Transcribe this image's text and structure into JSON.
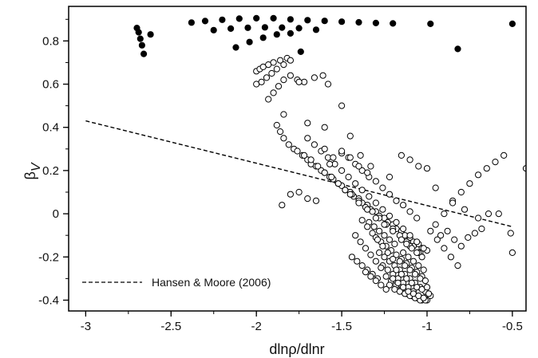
{
  "chart_data": {
    "type": "scatter",
    "xlabel": "dlnρ/dlnr",
    "ylabel": "β",
    "ylabel_subscript": "V",
    "xlim": [
      -3.1,
      -0.42
    ],
    "ylim": [
      -0.45,
      0.96
    ],
    "x_ticks": [
      -3,
      -2.5,
      -2,
      -1.5,
      -1,
      -0.5
    ],
    "x_tick_labels": [
      "-3",
      "-2.5",
      "-2",
      "-1.5",
      "-1",
      "-0.5"
    ],
    "y_ticks": [
      -0.4,
      -0.2,
      0,
      0.2,
      0.4,
      0.6,
      0.8
    ],
    "y_tick_labels": [
      "-0.4",
      "-0.2",
      "0",
      "0.2",
      "0.4",
      "0.6",
      "0.8"
    ],
    "grid": false,
    "legend": {
      "position": "bottom-left",
      "entries": [
        {
          "label": "Hansen & Moore (2006)",
          "style": "dashed-line"
        }
      ]
    },
    "series": [
      {
        "name": "Hansen & Moore (2006)",
        "type": "line",
        "style": "dashed",
        "color": "#000000",
        "x": [
          -3.0,
          -0.5
        ],
        "y": [
          0.43,
          -0.06
        ]
      },
      {
        "type": "scatter",
        "marker": "filled-circle",
        "color": "#000000",
        "x": [
          -2.7,
          -2.69,
          -2.68,
          -2.67,
          -2.66,
          -2.62,
          -2.38,
          -2.3,
          -2.2,
          -2.1,
          -2.0,
          -1.9,
          -1.8,
          -1.7,
          -1.6,
          -1.5,
          -1.4,
          -1.3,
          -1.2,
          -0.98,
          -0.82,
          -0.5,
          -2.25,
          -2.15,
          -2.05,
          -1.95,
          -1.85,
          -1.75,
          -1.65,
          -2.12,
          -2.04,
          -1.96,
          -1.88,
          -1.8,
          -1.74
        ],
        "y": [
          0.86,
          0.84,
          0.81,
          0.78,
          0.74,
          0.83,
          0.885,
          0.892,
          0.898,
          0.903,
          0.905,
          0.905,
          0.9,
          0.896,
          0.893,
          0.889,
          0.886,
          0.883,
          0.881,
          0.879,
          0.763,
          0.879,
          0.85,
          0.857,
          0.861,
          0.863,
          0.862,
          0.859,
          0.852,
          0.77,
          0.795,
          0.815,
          0.83,
          0.835,
          0.75
        ]
      },
      {
        "type": "scatter",
        "marker": "open-circle",
        "color": "#000000",
        "x": [
          -2.0,
          -1.98,
          -1.96,
          -1.93,
          -1.9,
          -1.86,
          -1.82,
          -2.0,
          -1.97,
          -1.94,
          -1.91,
          -1.88,
          -1.84,
          -1.8,
          -1.93,
          -1.9,
          -1.87,
          -1.84,
          -1.8,
          -1.76,
          -1.72,
          -1.66,
          -1.61,
          -1.58,
          -1.75,
          -1.88,
          -1.86,
          -1.84,
          -1.81,
          -1.78,
          -1.76,
          -1.73,
          -1.7,
          -1.68,
          -1.65,
          -1.62,
          -1.6,
          -1.57,
          -1.55,
          -1.52,
          -1.5,
          -1.48,
          -1.45,
          -1.43,
          -1.4,
          -1.38,
          -1.35,
          -1.33,
          -1.3,
          -1.28,
          -1.25,
          -1.23,
          -1.2,
          -1.18,
          -1.15,
          -1.13,
          -1.1,
          -1.08,
          -1.05,
          -1.03,
          -1.0,
          -1.72,
          -1.68,
          -1.64,
          -1.6,
          -1.56,
          -1.52,
          -1.48,
          -1.44,
          -1.4,
          -1.36,
          -1.32,
          -1.28,
          -1.24,
          -1.2,
          -1.16,
          -1.12,
          -1.08,
          -1.04,
          -1.5,
          -1.46,
          -1.42,
          -1.38,
          -1.34,
          -1.3,
          -1.26,
          -1.22,
          -1.18,
          -1.14,
          -1.1,
          -1.06,
          -1.7,
          -1.66,
          -1.62,
          -1.58,
          -1.54,
          -1.5,
          -1.46,
          -1.42,
          -1.38,
          -1.34,
          -1.3,
          -1.26,
          -1.22,
          -1.18,
          -1.14,
          -1.1,
          -1.06,
          -1.02,
          -1.45,
          -1.4,
          -1.35,
          -1.3,
          -1.25,
          -1.2,
          -1.15,
          -1.1,
          -1.05,
          -1.3,
          -1.27,
          -1.24,
          -1.21,
          -1.18,
          -1.15,
          -1.12,
          -1.09,
          -1.06,
          -1.03,
          -1.28,
          -1.25,
          -1.22,
          -1.19,
          -1.16,
          -1.13,
          -1.1,
          -1.07,
          -1.04,
          -1.01,
          -1.26,
          -1.23,
          -1.2,
          -1.17,
          -1.14,
          -1.11,
          -1.08,
          -1.05,
          -1.02,
          -1.24,
          -1.21,
          -1.18,
          -1.15,
          -1.12,
          -1.09,
          -1.06,
          -1.03,
          -1.0,
          -1.22,
          -1.19,
          -1.16,
          -1.13,
          -1.1,
          -1.07,
          -1.04,
          -1.01,
          -0.98,
          -1.2,
          -1.17,
          -1.14,
          -1.11,
          -1.08,
          -1.05,
          -1.02,
          -0.99,
          -1.18,
          -1.15,
          -1.12,
          -1.09,
          -1.06,
          -1.03,
          -1.0,
          -1.16,
          -1.13,
          -1.1,
          -1.07,
          -1.04,
          -1.01,
          -1.14,
          -1.11,
          -1.08,
          -1.05,
          -1.02,
          -1.12,
          -1.09,
          -1.06,
          -1.03,
          -1.34,
          -1.31,
          -1.28,
          -1.25,
          -1.22,
          -1.19,
          -1.38,
          -1.35,
          -1.32,
          -1.29,
          -1.26,
          -1.23,
          -1.2,
          -1.42,
          -1.39,
          -1.36,
          -1.33,
          -1.3,
          -1.27,
          -1.44,
          -1.41,
          -1.38,
          -1.35,
          -1.32,
          -1.29,
          -1.36,
          -1.33,
          -1.3,
          -1.27,
          -1.24,
          -0.95,
          -0.9,
          -0.85,
          -0.8,
          -0.75,
          -0.7,
          -0.65,
          -0.6,
          -0.55,
          -0.5,
          -0.92,
          -0.88,
          -0.84,
          -0.8,
          -0.76,
          -0.72,
          -0.68,
          -0.98,
          -0.94,
          -0.9,
          -0.86,
          -0.82,
          -1.6,
          -1.55,
          -1.5,
          -1.45,
          -1.4,
          -1.35,
          -1.57,
          -1.5,
          -1.45,
          -1.39,
          -1.33,
          -1.22,
          -1.15,
          -1.1,
          -1.05,
          -1.0,
          -0.95,
          -0.85,
          -0.78,
          -0.7,
          -0.64,
          -0.58,
          -0.42,
          -0.51,
          -1.8,
          -1.75,
          -1.7,
          -1.65,
          -1.85,
          -1.84,
          -1.7,
          -1.6
        ],
        "y": [
          0.66,
          0.67,
          0.68,
          0.69,
          0.7,
          0.71,
          0.72,
          0.6,
          0.61,
          0.63,
          0.65,
          0.67,
          0.69,
          0.71,
          0.53,
          0.56,
          0.59,
          0.62,
          0.64,
          0.62,
          0.61,
          0.63,
          0.64,
          0.6,
          0.61,
          0.41,
          0.38,
          0.35,
          0.32,
          0.3,
          0.29,
          0.27,
          0.25,
          0.23,
          0.22,
          0.2,
          0.19,
          0.17,
          0.16,
          0.14,
          0.13,
          0.11,
          0.1,
          0.08,
          0.07,
          0.05,
          0.04,
          0.02,
          0.01,
          -0.01,
          -0.02,
          -0.04,
          -0.05,
          -0.07,
          -0.08,
          -0.1,
          -0.11,
          -0.13,
          -0.14,
          -0.16,
          -0.17,
          0.27,
          0.25,
          0.22,
          0.19,
          0.17,
          0.14,
          0.11,
          0.09,
          0.06,
          0.03,
          0.01,
          -0.02,
          -0.05,
          -0.07,
          -0.1,
          -0.13,
          -0.15,
          -0.18,
          0.28,
          0.26,
          0.23,
          0.2,
          0.17,
          0.15,
          0.12,
          0.09,
          0.06,
          0.04,
          0.01,
          -0.02,
          0.35,
          0.32,
          0.29,
          0.26,
          0.23,
          0.2,
          0.17,
          0.14,
          0.11,
          0.08,
          0.05,
          0.02,
          -0.01,
          -0.04,
          -0.07,
          -0.1,
          -0.13,
          -0.16,
          0.09,
          0.05,
          0.02,
          -0.02,
          -0.05,
          -0.08,
          -0.12,
          -0.15,
          -0.18,
          -0.11,
          -0.13,
          -0.15,
          -0.17,
          -0.19,
          -0.21,
          -0.23,
          -0.25,
          -0.27,
          -0.29,
          -0.18,
          -0.2,
          -0.22,
          -0.24,
          -0.26,
          -0.28,
          -0.3,
          -0.32,
          -0.34,
          -0.36,
          -0.24,
          -0.26,
          -0.28,
          -0.3,
          -0.32,
          -0.34,
          -0.36,
          -0.38,
          -0.39,
          -0.29,
          -0.31,
          -0.33,
          -0.35,
          -0.37,
          -0.38,
          -0.39,
          -0.4,
          -0.4,
          -0.33,
          -0.35,
          -0.36,
          -0.37,
          -0.38,
          -0.39,
          -0.4,
          -0.4,
          -0.38,
          -0.3,
          -0.32,
          -0.34,
          -0.36,
          -0.37,
          -0.38,
          -0.39,
          -0.37,
          -0.26,
          -0.28,
          -0.3,
          -0.32,
          -0.34,
          -0.35,
          -0.34,
          -0.22,
          -0.24,
          -0.26,
          -0.28,
          -0.3,
          -0.31,
          -0.18,
          -0.2,
          -0.22,
          -0.24,
          -0.26,
          -0.14,
          -0.16,
          -0.18,
          -0.2,
          -0.04,
          -0.06,
          -0.08,
          -0.1,
          -0.12,
          -0.14,
          -0.03,
          -0.06,
          -0.09,
          -0.12,
          -0.15,
          -0.18,
          -0.21,
          -0.1,
          -0.13,
          -0.16,
          -0.19,
          -0.22,
          -0.25,
          -0.2,
          -0.22,
          -0.24,
          -0.26,
          -0.28,
          -0.3,
          -0.27,
          -0.29,
          -0.31,
          -0.33,
          -0.35,
          -0.05,
          0.0,
          0.06,
          0.1,
          0.14,
          0.18,
          0.21,
          0.24,
          0.27,
          -0.18,
          -0.1,
          -0.08,
          -0.12,
          -0.15,
          -0.11,
          -0.09,
          -0.07,
          -0.08,
          -0.12,
          -0.16,
          -0.2,
          -0.24,
          0.3,
          0.26,
          0.29,
          0.26,
          0.22,
          0.19,
          0.23,
          0.5,
          0.36,
          0.27,
          0.22,
          0.17,
          0.27,
          0.25,
          0.22,
          0.21,
          0.12,
          0.05,
          0.02,
          -0.02,
          0.0,
          0.0,
          0.21,
          -0.09,
          0.09,
          0.1,
          0.07,
          0.06,
          0.04,
          0.46,
          0.42,
          0.4
        ]
      }
    ]
  }
}
